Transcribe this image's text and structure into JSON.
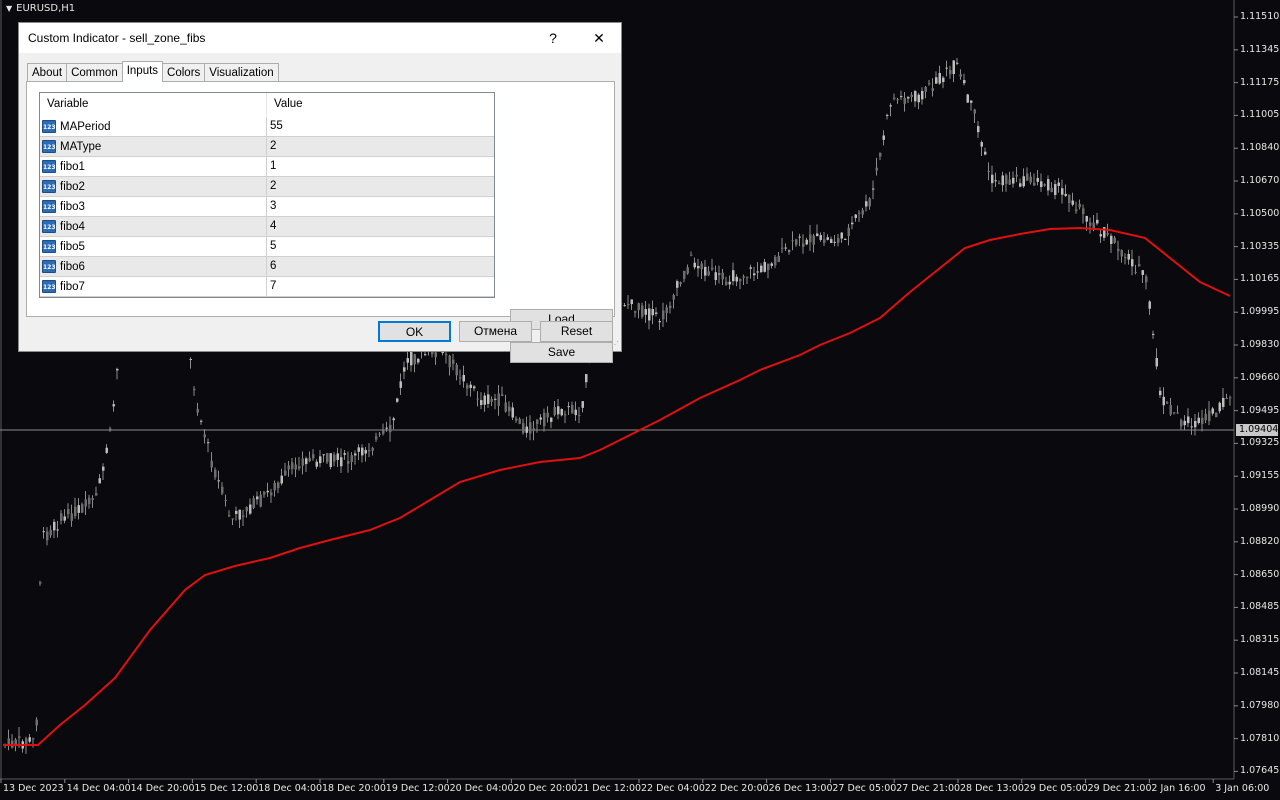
{
  "chart": {
    "symbol_label": "EURUSD,H1",
    "current_price": "1.09404",
    "colors": {
      "background": "#0a0a0e",
      "candle": "#9a9a9a",
      "ma_line": "#e01010",
      "axis_text": "#e6e6e6"
    },
    "price_labels": [
      "1.11510",
      "1.11345",
      "1.11175",
      "1.11005",
      "1.10840",
      "1.10670",
      "1.10500",
      "1.10335",
      "1.10165",
      "1.09995",
      "1.09830",
      "1.09660",
      "1.09495",
      "1.09325",
      "1.09155",
      "1.08990",
      "1.08820",
      "1.08650",
      "1.08485",
      "1.08315",
      "1.08145",
      "1.07980",
      "1.07810",
      "1.07645"
    ],
    "time_labels": [
      "13 Dec 2023",
      "14 Dec 04:00",
      "14 Dec 20:00",
      "15 Dec 12:00",
      "18 Dec 04:00",
      "18 Dec 20:00",
      "19 Dec 12:00",
      "20 Dec 04:00",
      "20 Dec 20:00",
      "21 Dec 12:00",
      "22 Dec 04:00",
      "22 Dec 20:00",
      "26 Dec 13:00",
      "27 Dec 05:00",
      "27 Dec 21:00",
      "28 Dec 13:00",
      "29 Dec 05:00",
      "29 Dec 21:00",
      "2 Jan 16:00",
      "3 Jan 06:00"
    ]
  },
  "dialog": {
    "title": "Custom Indicator - sell_zone_fibs",
    "help": "?",
    "close": "✕",
    "tabs": [
      "About",
      "Common",
      "Inputs",
      "Colors",
      "Visualization"
    ],
    "active_tab": "Inputs",
    "table": {
      "headers": {
        "variable": "Variable",
        "value": "Value"
      },
      "icon_text": "123",
      "rows": [
        {
          "variable": "MAPeriod",
          "value": "55"
        },
        {
          "variable": "MAType",
          "value": "2"
        },
        {
          "variable": "fibo1",
          "value": "1"
        },
        {
          "variable": "fibo2",
          "value": "2"
        },
        {
          "variable": "fibo3",
          "value": "3"
        },
        {
          "variable": "fibo4",
          "value": "4"
        },
        {
          "variable": "fibo5",
          "value": "5"
        },
        {
          "variable": "fibo6",
          "value": "6"
        },
        {
          "variable": "fibo7",
          "value": "7"
        }
      ]
    },
    "buttons": {
      "load": "Load",
      "save": "Save",
      "ok": "OK",
      "cancel": "Отмена",
      "reset": "Reset"
    }
  }
}
